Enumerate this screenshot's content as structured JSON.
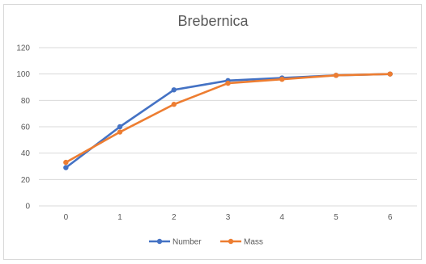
{
  "chart_data": {
    "type": "line",
    "title": "Brebernica",
    "xlabel": "",
    "ylabel": "",
    "x": [
      0,
      1,
      2,
      3,
      4,
      5,
      6
    ],
    "yticks": [
      0,
      20,
      40,
      60,
      80,
      100,
      120
    ],
    "ylim": [
      0,
      120
    ],
    "grid": true,
    "legend_position": "bottom",
    "series": [
      {
        "name": "Number",
        "color": "#4472c4",
        "values": [
          29,
          60,
          88,
          95,
          97,
          99,
          100
        ]
      },
      {
        "name": "Mass",
        "color": "#ed7d31",
        "values": [
          33,
          56,
          77,
          93,
          96,
          99,
          100
        ]
      }
    ]
  }
}
